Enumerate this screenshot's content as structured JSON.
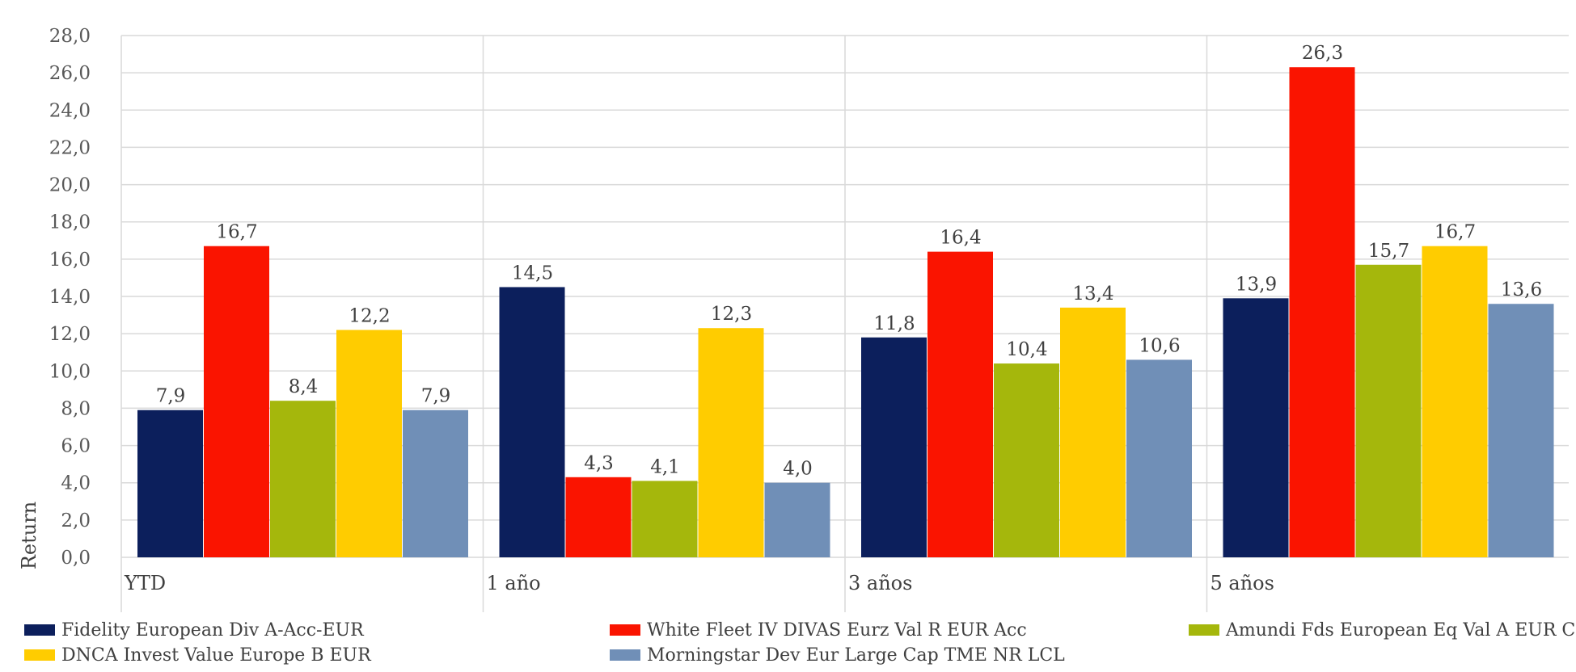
{
  "chart_data": {
    "type": "bar",
    "title": "",
    "xlabel": "",
    "ylabel": "Return",
    "ylim": [
      0,
      28
    ],
    "ytick_step": 2,
    "y_ticks": [
      "0,0",
      "2,0",
      "4,0",
      "6,0",
      "8,0",
      "10,0",
      "12,0",
      "14,0",
      "16,0",
      "18,0",
      "20,0",
      "22,0",
      "24,0",
      "26,0",
      "28,0"
    ],
    "grid": true,
    "legend_position": "bottom",
    "categories": [
      "YTD",
      "1 año",
      "3 años",
      "5 años"
    ],
    "series": [
      {
        "name": "Fidelity European Div A-Acc-EUR",
        "color": "#0c1f5c",
        "values": [
          7.9,
          14.5,
          11.8,
          13.9
        ],
        "labels": [
          "7,9",
          "14,5",
          "11,8",
          "13,9"
        ]
      },
      {
        "name": "White Fleet IV DIVAS Eurz Val R EUR Acc",
        "color": "#fa1400",
        "values": [
          16.7,
          4.3,
          16.4,
          26.3
        ],
        "labels": [
          "16,7",
          "4,3",
          "16,4",
          "26,3"
        ]
      },
      {
        "name": "Amundi Fds European Eq Val A EUR C",
        "color": "#a5b70c",
        "values": [
          8.4,
          4.1,
          10.4,
          15.7
        ],
        "labels": [
          "8,4",
          "4,1",
          "10,4",
          "15,7"
        ]
      },
      {
        "name": "DNCA Invest Value Europe B EUR",
        "color": "#ffcc00",
        "values": [
          12.2,
          12.3,
          13.4,
          16.7
        ],
        "labels": [
          "12,2",
          "12,3",
          "13,4",
          "16,7"
        ]
      },
      {
        "name": "Morningstar Dev Eur Large Cap TME NR LCL",
        "color": "#708fb7",
        "values": [
          7.9,
          4.0,
          10.6,
          13.6
        ],
        "labels": [
          "7,9",
          "4,0",
          "10,6",
          "13,6"
        ]
      }
    ]
  }
}
